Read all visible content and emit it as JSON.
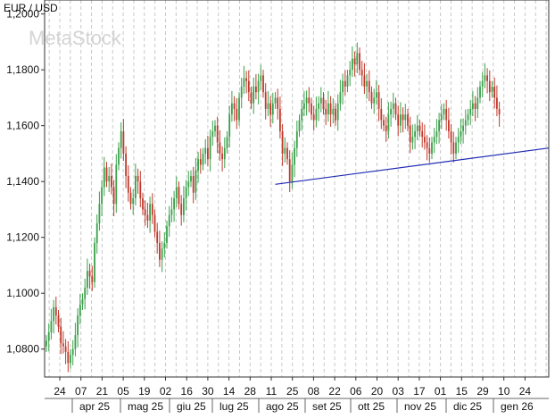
{
  "chart_data": {
    "type": "candlestick",
    "title": "EUR / USD",
    "watermark": "MetaStock",
    "ylim": [
      1.07,
      1.205
    ],
    "y_ticks": [
      {
        "value": 1.08,
        "label": "1,0800"
      },
      {
        "value": 1.1,
        "label": "1,1000"
      },
      {
        "value": 1.12,
        "label": "1,1200"
      },
      {
        "value": 1.14,
        "label": "1,1400"
      },
      {
        "value": 1.16,
        "label": "1,1600"
      },
      {
        "value": 1.18,
        "label": "1,1800"
      },
      {
        "value": 1.2,
        "label": "1,2000"
      }
    ],
    "x_day_ticks": [
      "24",
      "07",
      "21",
      "05",
      "19",
      "02",
      "16",
      "30",
      "14",
      "28",
      "11",
      "25",
      "08",
      "22",
      "06",
      "20",
      "03",
      "17",
      "01",
      "15",
      "29",
      "10",
      "24"
    ],
    "x_month_labels": [
      "apr 25",
      "mag 25",
      "giu 25",
      "lug 25",
      "ago 25",
      "set 25",
      "ott 25",
      "nov 25",
      "dic 25",
      "gen 26"
    ],
    "close_series": [
      1.083,
      1.086,
      1.09,
      1.095,
      1.092,
      1.088,
      1.082,
      1.081,
      1.079,
      1.075,
      1.078,
      1.08,
      1.085,
      1.092,
      1.096,
      1.098,
      1.102,
      1.108,
      1.106,
      1.104,
      1.118,
      1.125,
      1.132,
      1.138,
      1.145,
      1.14,
      1.142,
      1.138,
      1.132,
      1.146,
      1.152,
      1.158,
      1.15,
      1.142,
      1.136,
      1.132,
      1.134,
      1.142,
      1.14,
      1.134,
      1.13,
      1.128,
      1.126,
      1.132,
      1.128,
      1.122,
      1.118,
      1.112,
      1.116,
      1.118,
      1.124,
      1.128,
      1.13,
      1.134,
      1.138,
      1.132,
      1.128,
      1.134,
      1.138,
      1.14,
      1.142,
      1.136,
      1.144,
      1.148,
      1.146,
      1.15,
      1.152,
      1.148,
      1.156,
      1.158,
      1.16,
      1.154,
      1.15,
      1.148,
      1.152,
      1.156,
      1.164,
      1.168,
      1.166,
      1.162,
      1.17,
      1.174,
      1.177,
      1.176,
      1.172,
      1.168,
      1.174,
      1.172,
      1.176,
      1.178,
      1.172,
      1.166,
      1.168,
      1.164,
      1.168,
      1.17,
      1.166,
      1.158,
      1.15,
      1.152,
      1.148,
      1.14,
      1.146,
      1.152,
      1.158,
      1.162,
      1.166,
      1.168,
      1.17,
      1.168,
      1.164,
      1.162,
      1.166,
      1.168,
      1.17,
      1.166,
      1.164,
      1.168,
      1.164,
      1.166,
      1.162,
      1.168,
      1.172,
      1.176,
      1.174,
      1.178,
      1.18,
      1.184,
      1.182,
      1.186,
      1.18,
      1.178,
      1.174,
      1.176,
      1.172,
      1.168,
      1.17,
      1.172,
      1.166,
      1.162,
      1.16,
      1.158,
      1.164,
      1.166,
      1.168,
      1.164,
      1.16,
      1.164,
      1.162,
      1.164,
      1.16,
      1.154,
      1.156,
      1.158,
      1.16,
      1.158,
      1.156,
      1.154,
      1.152,
      1.15,
      1.154,
      1.156,
      1.158,
      1.162,
      1.164,
      1.166,
      1.162,
      1.158,
      1.154,
      1.15,
      1.154,
      1.156,
      1.158,
      1.16,
      1.162,
      1.164,
      1.166,
      1.168,
      1.166,
      1.17,
      1.174,
      1.176,
      1.178,
      1.176,
      1.172,
      1.174,
      1.17,
      1.166,
      1.164
    ],
    "trendline": {
      "start_index": 95,
      "start_value": 1.139,
      "end_value": 1.152
    }
  }
}
